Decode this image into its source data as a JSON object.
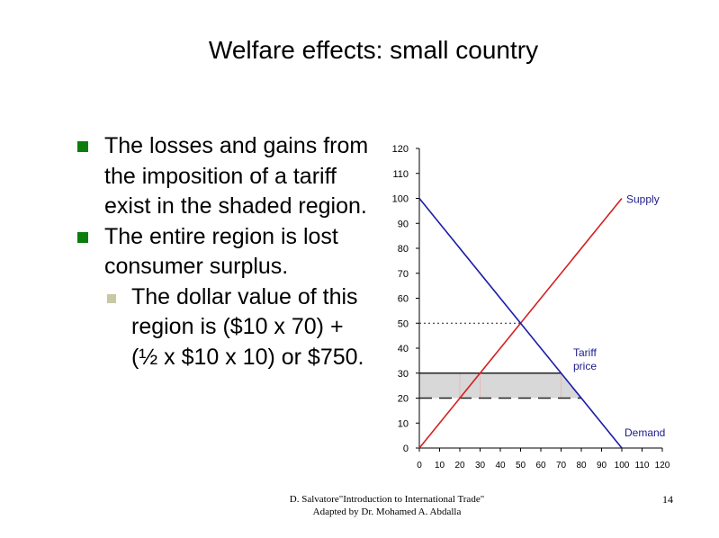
{
  "slide": {
    "title": "Welfare effects: small country",
    "bullets": [
      "The losses and gains from the imposition of a tariff exist in the shaded region.",
      "The entire region is lost consumer surplus."
    ],
    "sub_bullet": "The dollar value of this region is ($10 x 70) + (½ x $10 x 10) or $750.",
    "footer_line1": "D. Salvatore\"Introduction to International Trade\"",
    "footer_line2": "Adapted by Dr. Mohamed A. Abdalla",
    "page_number": "14",
    "colors": {
      "bullet": "#0b7d0b",
      "sub_bullet": "#c8c8a6"
    }
  },
  "chart_data": {
    "type": "line",
    "xlim": [
      0,
      120
    ],
    "ylim": [
      0,
      120
    ],
    "x_ticks": [
      "0",
      "10",
      "20",
      "30",
      "40",
      "50",
      "60",
      "70",
      "80",
      "90",
      "100",
      "110",
      "120"
    ],
    "y_ticks": [
      "0",
      "10",
      "20",
      "30",
      "40",
      "50",
      "60",
      "70",
      "80",
      "90",
      "100",
      "110",
      "120"
    ],
    "series": [
      {
        "name": "Supply",
        "color": "#d42020",
        "points": [
          [
            0,
            0
          ],
          [
            100,
            100
          ]
        ]
      },
      {
        "name": "Demand",
        "color": "#1c1ca8",
        "points": [
          [
            0,
            100
          ],
          [
            100,
            0
          ]
        ]
      }
    ],
    "world_price": 20,
    "tariff_price": 30,
    "equilibrium": [
      50,
      50
    ],
    "shaded_region": {
      "y_range": [
        20,
        30
      ],
      "x_range_bottom": [
        0,
        80
      ],
      "x_range_top": [
        0,
        70
      ],
      "color": "#d8d8d8"
    },
    "labels": {
      "supply": "Supply",
      "demand": "Demand",
      "tariff_line1": "Tariff",
      "tariff_line2": "price"
    },
    "colors": {
      "label_text": "#1c1c8a",
      "tick_text": "#000000"
    }
  }
}
